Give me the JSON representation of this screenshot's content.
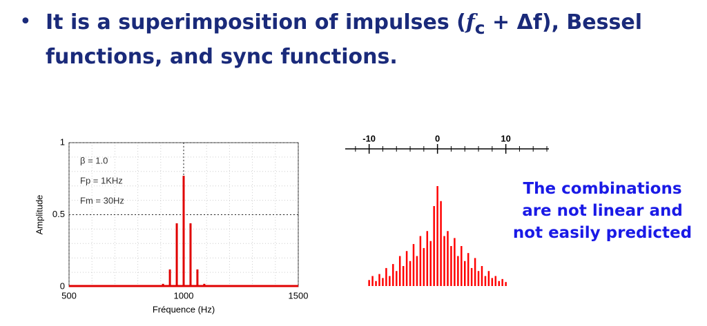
{
  "slide": {
    "bullet": "•",
    "text": {
      "before": "It is a superimposition of impulses (",
      "math": "f",
      "sub": "c",
      "after": " + Δf), Bessel functions, and sync functions."
    },
    "note": "The combinations are not linear and not easily predicted"
  },
  "chart_data": [
    {
      "type": "stem",
      "xlabel": "Fréquence (Hz)",
      "ylabel": "Amplitude",
      "annotations": [
        "β = 1.0",
        "Fp = 1KHz",
        "Fm = 30Hz"
      ],
      "x": [
        910,
        940,
        970,
        1000,
        1030,
        1060,
        1090
      ],
      "values": [
        0.02,
        0.12,
        0.44,
        0.77,
        0.44,
        0.12,
        0.02
      ],
      "color": "#e00000",
      "xlim": [
        500,
        1500
      ],
      "xticks": [
        500,
        1000,
        1500
      ],
      "ylim": [
        0,
        1
      ],
      "yticks": [
        0,
        0.5,
        1
      ],
      "grid": true
    },
    {
      "type": "stem",
      "color": "#ff0000",
      "xlim": [
        -13.5,
        16.3
      ],
      "xticks": [
        -10,
        0,
        10
      ],
      "minor_xticks": [
        -12,
        -8,
        -6,
        -4,
        -2,
        2,
        4,
        6,
        8,
        12,
        14,
        16
      ],
      "ylim": [
        0,
        1
      ],
      "x": [
        -10,
        -9.5,
        -9,
        -8.5,
        -8,
        -7.5,
        -7,
        -6.5,
        -6,
        -5.5,
        -5,
        -4.5,
        -4,
        -3.5,
        -3,
        -2.5,
        -2,
        -1.5,
        -1,
        -0.5,
        0,
        0.5,
        1,
        1.5,
        2,
        2.5,
        3,
        3.5,
        4,
        4.5,
        5,
        5.5,
        6,
        6.5,
        7,
        7.5,
        8,
        8.5,
        9,
        9.5,
        10
      ],
      "values": [
        0.06,
        0.1,
        0.05,
        0.12,
        0.08,
        0.18,
        0.1,
        0.22,
        0.15,
        0.3,
        0.2,
        0.35,
        0.25,
        0.42,
        0.3,
        0.5,
        0.38,
        0.55,
        0.45,
        0.8,
        1,
        0.85,
        0.5,
        0.55,
        0.4,
        0.48,
        0.3,
        0.4,
        0.25,
        0.33,
        0.18,
        0.28,
        0.15,
        0.2,
        0.1,
        0.15,
        0.08,
        0.1,
        0.05,
        0.07,
        0.04
      ]
    }
  ]
}
